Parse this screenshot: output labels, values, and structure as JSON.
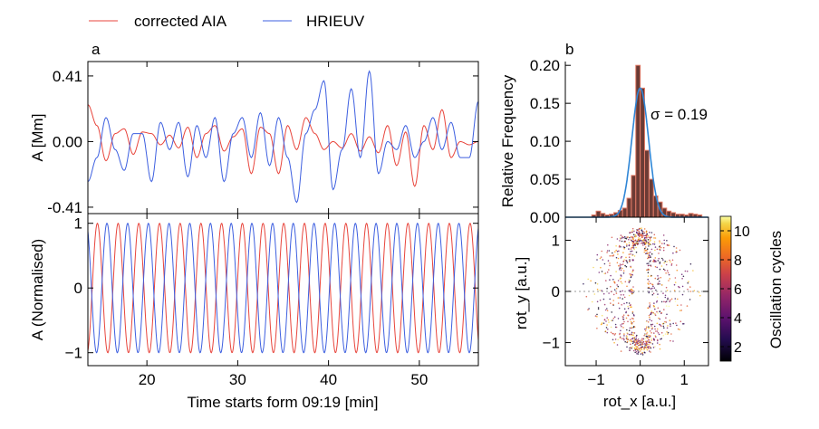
{
  "legend": {
    "entries": [
      {
        "label": "corrected AIA",
        "color": "#e8453c"
      },
      {
        "label": "HRIEUV",
        "color": "#3d5fe0"
      }
    ]
  },
  "panels": {
    "a": "a",
    "b": "b"
  },
  "colors": {
    "aia": "#e8453c",
    "hri": "#3d5fe0",
    "hist_bar": "#6b3b35",
    "hist_edge": "#e27a66",
    "hist_fit": "#2f86d6",
    "axis": "#000000"
  },
  "chart_data": [
    {
      "id": "amplitude",
      "type": "line",
      "ylabel": "A [Mm]",
      "xlim": [
        13.5,
        56.5
      ],
      "ylim": [
        -0.45,
        0.5
      ],
      "yticks": [
        -0.41,
        0.0,
        0.41
      ],
      "ytick_labels": [
        "-0.41",
        "0.00",
        "0.41"
      ],
      "xticks": [
        20,
        30,
        40,
        50
      ],
      "series": [
        {
          "name": "corrected AIA",
          "color": "#e8453c",
          "x": [
            13.5,
            14.5,
            15.5,
            16.5,
            17.5,
            18.5,
            19.5,
            20.5,
            21.5,
            22.5,
            23.5,
            24.5,
            25.5,
            26.5,
            27.5,
            28.5,
            29.5,
            30.5,
            31.5,
            32.5,
            33.5,
            34.5,
            35.5,
            36.5,
            37.5,
            38.5,
            39.5,
            40.5,
            41.5,
            42.5,
            43.5,
            44.5,
            45.5,
            46.5,
            47.5,
            48.5,
            49.5,
            50.5,
            51.5,
            52.5,
            53.5,
            54.5,
            55.5,
            56.5
          ],
          "y": [
            0.23,
            0.1,
            -0.12,
            0.05,
            0.08,
            -0.08,
            0.06,
            0.05,
            -0.02,
            0.04,
            -0.04,
            0.09,
            -0.1,
            0.05,
            0.1,
            -0.06,
            0.03,
            0.08,
            -0.2,
            0.09,
            0.05,
            -0.2,
            0.1,
            -0.05,
            0.15,
            0.05,
            -0.05,
            0.0,
            -0.04,
            0.05,
            -0.06,
            0.03,
            -0.07,
            0.1,
            -0.15,
            0.06,
            -0.28,
            0.1,
            -0.05,
            0.2,
            -0.1,
            0.0,
            -0.02,
            0.0
          ]
        },
        {
          "name": "HRIEUV",
          "color": "#3d5fe0",
          "x": [
            13.5,
            14.5,
            15.5,
            16.5,
            17.5,
            18.5,
            19.5,
            20.5,
            21.5,
            22.5,
            23.5,
            24.5,
            25.5,
            26.5,
            27.5,
            28.5,
            29.5,
            30.5,
            31.5,
            32.5,
            33.5,
            34.5,
            35.5,
            36.5,
            37.5,
            38.5,
            39.5,
            40.5,
            41.5,
            42.5,
            43.5,
            44.5,
            45.5,
            46.5,
            47.5,
            48.5,
            49.5,
            50.5,
            51.5,
            52.5,
            53.5,
            54.5,
            55.5,
            56.5
          ],
          "y": [
            -0.25,
            -0.1,
            0.15,
            -0.05,
            -0.18,
            0.05,
            0.05,
            -0.25,
            0.12,
            -0.05,
            0.12,
            -0.22,
            0.1,
            -0.1,
            0.15,
            -0.25,
            0.05,
            0.15,
            -0.1,
            0.18,
            -0.15,
            0.15,
            -0.1,
            -0.38,
            0.05,
            0.2,
            0.38,
            -0.3,
            -0.05,
            0.33,
            -0.1,
            0.44,
            -0.2,
            0.0,
            -0.05,
            0.1,
            -0.1,
            0.0,
            0.15,
            -0.05,
            0.12,
            -0.1,
            -0.1,
            0.25
          ]
        }
      ]
    },
    {
      "id": "normalised",
      "type": "line",
      "ylabel": "A (Normalised)",
      "xlabel": "Time starts form 09:19 [min]",
      "xlim": [
        13.5,
        56.5
      ],
      "ylim": [
        -1.2,
        1.15
      ],
      "yticks": [
        -1,
        0,
        1
      ],
      "ytick_labels": [
        "−1",
        "0",
        "1"
      ],
      "xticks": [
        20,
        30,
        40,
        50
      ],
      "xtick_labels": [
        "20",
        "30",
        "40",
        "50"
      ],
      "series": [
        {
          "name": "corrected AIA",
          "color": "#e8453c",
          "period_min": 2.28,
          "phase_min": 0.3
        },
        {
          "name": "HRIEUV",
          "color": "#3d5fe0",
          "period_min": 2.28,
          "phase_min": 1.35
        }
      ]
    },
    {
      "id": "histogram",
      "type": "bar",
      "ylabel": "Relative Frequency",
      "xlim": [
        -1.7,
        1.55
      ],
      "ylim": [
        0,
        0.205
      ],
      "yticks": [
        0.0,
        0.05,
        0.1,
        0.15,
        0.2
      ],
      "ytick_labels": [
        "0.00",
        "0.05",
        "0.10",
        "0.15",
        "0.20"
      ],
      "bin_width": 0.1,
      "bin_centers": [
        -1.05,
        -0.95,
        -0.85,
        -0.75,
        -0.65,
        -0.55,
        -0.45,
        -0.35,
        -0.25,
        -0.15,
        -0.05,
        0.05,
        0.15,
        0.25,
        0.35,
        0.45,
        0.55,
        0.65,
        0.75,
        0.85,
        0.95,
        1.05,
        1.15,
        1.25,
        1.35
      ],
      "values": [
        0.003,
        0.008,
        0.005,
        0.003,
        0.004,
        0.006,
        0.009,
        0.012,
        0.025,
        0.055,
        0.2,
        0.17,
        0.088,
        0.05,
        0.028,
        0.02,
        0.012,
        0.008,
        0.006,
        0.004,
        0.004,
        0.003,
        0.005,
        0.004,
        0.003
      ],
      "fit": {
        "type": "gaussian",
        "mu": 0.0,
        "sigma": 0.19,
        "peak": 0.17
      },
      "annotation": "σ = 0.19"
    },
    {
      "id": "rotation-scatter",
      "type": "scatter",
      "xlabel": "rot_x [a.u.]",
      "ylabel": "rot_y [a.u.]",
      "xlim": [
        -1.7,
        1.55
      ],
      "ylim": [
        -1.45,
        1.45
      ],
      "xticks": [
        -1,
        0,
        1
      ],
      "xtick_labels": [
        "−1",
        "0",
        "1"
      ],
      "yticks": [
        -1,
        0,
        1
      ],
      "ytick_labels": [
        "−1",
        "0",
        "1"
      ],
      "colorbar": {
        "label": "Oscillation cycles",
        "min": 1,
        "max": 11,
        "ticks": [
          2,
          4,
          6,
          8,
          10
        ],
        "colormap": "inferno"
      },
      "points": {
        "count": 950,
        "description": "rot_y ≈ sin(phase), rot_x ≈ amplitude-scaled cos(phase), coloured by oscillation cycle"
      }
    }
  ]
}
